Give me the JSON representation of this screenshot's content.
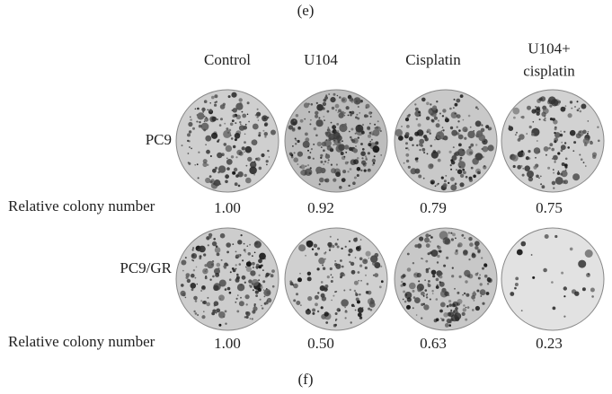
{
  "panel_top": "(e)",
  "panel_bottom": "(f)",
  "columns": [
    [
      "Control"
    ],
    [
      "U104"
    ],
    [
      "Cisplatin"
    ],
    [
      "U104+",
      "cisplatin"
    ]
  ],
  "rows": [
    {
      "label": "PC9",
      "metric_label": "Relative colony number",
      "values": [
        "1.00",
        "0.92",
        "0.79",
        "0.75"
      ]
    },
    {
      "label": "PC9/GR",
      "metric_label": "Relative colony number",
      "values": [
        "1.00",
        "0.50",
        "0.63",
        "0.23"
      ]
    }
  ]
}
